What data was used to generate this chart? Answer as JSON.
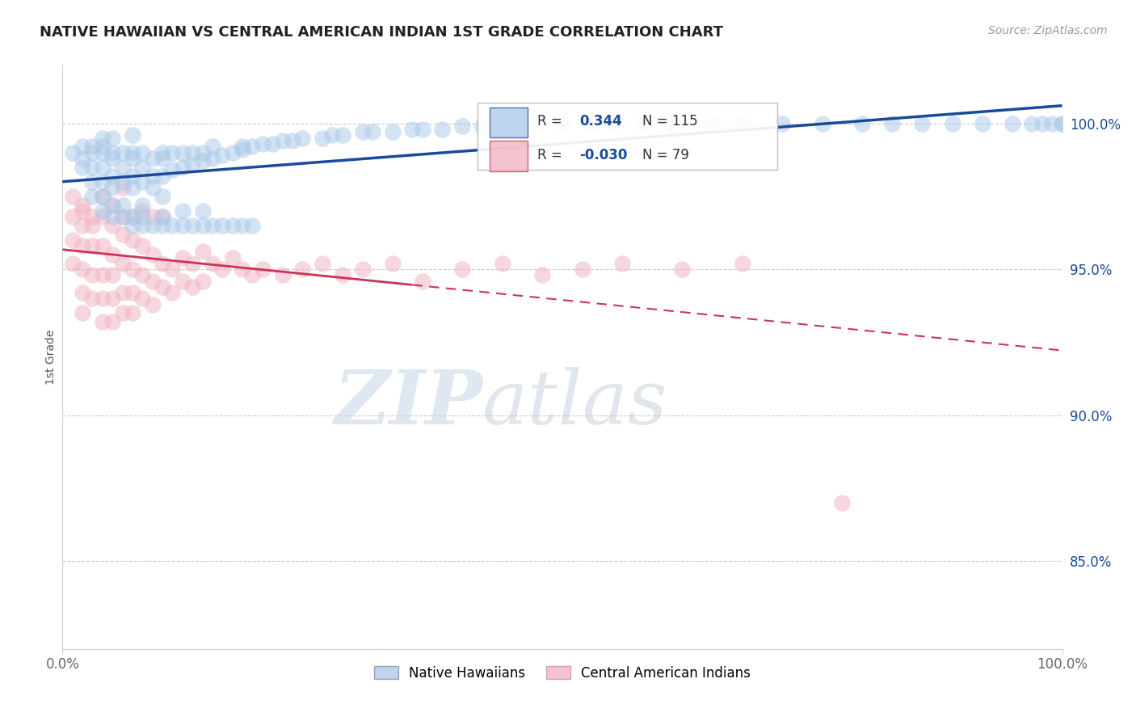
{
  "title": "NATIVE HAWAIIAN VS CENTRAL AMERICAN INDIAN 1ST GRADE CORRELATION CHART",
  "source_text": "Source: ZipAtlas.com",
  "ylabel": "1st Grade",
  "xlim": [
    0.0,
    1.0
  ],
  "ylim": [
    0.82,
    1.02
  ],
  "ytick_labels": [
    "85.0%",
    "90.0%",
    "95.0%",
    "100.0%"
  ],
  "ytick_values": [
    0.85,
    0.9,
    0.95,
    1.0
  ],
  "xtick_labels": [
    "0.0%",
    "100.0%"
  ],
  "xtick_values": [
    0.0,
    1.0
  ],
  "blue_R": 0.344,
  "blue_N": 115,
  "pink_R": -0.03,
  "pink_N": 79,
  "blue_color": "#a8c8e8",
  "pink_color": "#f0b0c0",
  "blue_line_color": "#1a4a9a",
  "pink_line_color": "#cc3355",
  "legend_label_blue": "Native Hawaiians",
  "legend_label_pink": "Central American Indians",
  "watermark_zip": "ZIP",
  "watermark_atlas": "atlas",
  "background_color": "#ffffff",
  "grid_color": "#cccccc",
  "title_color": "#222222",
  "blue_scatter_x": [
    0.01,
    0.02,
    0.02,
    0.02,
    0.03,
    0.03,
    0.03,
    0.03,
    0.03,
    0.04,
    0.04,
    0.04,
    0.04,
    0.04,
    0.04,
    0.04,
    0.05,
    0.05,
    0.05,
    0.05,
    0.05,
    0.05,
    0.05,
    0.06,
    0.06,
    0.06,
    0.06,
    0.06,
    0.07,
    0.07,
    0.07,
    0.07,
    0.07,
    0.07,
    0.07,
    0.08,
    0.08,
    0.08,
    0.08,
    0.08,
    0.08,
    0.09,
    0.09,
    0.09,
    0.09,
    0.1,
    0.1,
    0.1,
    0.1,
    0.1,
    0.1,
    0.11,
    0.11,
    0.11,
    0.12,
    0.12,
    0.12,
    0.12,
    0.13,
    0.13,
    0.13,
    0.14,
    0.14,
    0.14,
    0.14,
    0.15,
    0.15,
    0.15,
    0.16,
    0.16,
    0.17,
    0.17,
    0.18,
    0.18,
    0.18,
    0.19,
    0.19,
    0.2,
    0.21,
    0.22,
    0.23,
    0.24,
    0.26,
    0.27,
    0.28,
    0.3,
    0.31,
    0.33,
    0.35,
    0.36,
    0.38,
    0.4,
    0.42,
    0.44,
    0.46,
    0.5,
    0.53,
    0.55,
    0.58,
    0.61,
    0.65,
    0.68,
    0.72,
    0.76,
    0.8,
    0.83,
    0.86,
    0.89,
    0.92,
    0.95,
    0.97,
    0.98,
    0.99,
    1.0,
    1.0
  ],
  "blue_scatter_y": [
    0.99,
    0.988,
    0.985,
    0.992,
    0.98,
    0.985,
    0.99,
    0.992,
    0.975,
    0.98,
    0.985,
    0.99,
    0.992,
    0.975,
    0.97,
    0.995,
    0.978,
    0.982,
    0.988,
    0.99,
    0.972,
    0.968,
    0.995,
    0.98,
    0.985,
    0.99,
    0.972,
    0.968,
    0.978,
    0.982,
    0.988,
    0.99,
    0.968,
    0.965,
    0.996,
    0.98,
    0.985,
    0.99,
    0.968,
    0.965,
    0.972,
    0.982,
    0.988,
    0.965,
    0.978,
    0.982,
    0.988,
    0.99,
    0.965,
    0.968,
    0.975,
    0.984,
    0.99,
    0.965,
    0.985,
    0.99,
    0.965,
    0.97,
    0.986,
    0.99,
    0.965,
    0.987,
    0.99,
    0.965,
    0.97,
    0.988,
    0.992,
    0.965,
    0.989,
    0.965,
    0.99,
    0.965,
    0.991,
    0.992,
    0.965,
    0.992,
    0.965,
    0.993,
    0.993,
    0.994,
    0.994,
    0.995,
    0.995,
    0.996,
    0.996,
    0.997,
    0.997,
    0.997,
    0.998,
    0.998,
    0.998,
    0.999,
    0.999,
    0.999,
    0.999,
    1.0,
    1.0,
    1.0,
    1.0,
    1.0,
    1.0,
    1.0,
    1.0,
    1.0,
    1.0,
    1.0,
    1.0,
    1.0,
    1.0,
    1.0,
    1.0,
    1.0,
    1.0,
    1.0,
    1.0
  ],
  "pink_scatter_x": [
    0.01,
    0.01,
    0.01,
    0.01,
    0.02,
    0.02,
    0.02,
    0.02,
    0.02,
    0.02,
    0.02,
    0.03,
    0.03,
    0.03,
    0.03,
    0.03,
    0.04,
    0.04,
    0.04,
    0.04,
    0.04,
    0.04,
    0.05,
    0.05,
    0.05,
    0.05,
    0.05,
    0.05,
    0.06,
    0.06,
    0.06,
    0.06,
    0.06,
    0.06,
    0.07,
    0.07,
    0.07,
    0.07,
    0.07,
    0.08,
    0.08,
    0.08,
    0.08,
    0.09,
    0.09,
    0.09,
    0.09,
    0.1,
    0.1,
    0.1,
    0.11,
    0.11,
    0.12,
    0.12,
    0.13,
    0.13,
    0.14,
    0.14,
    0.15,
    0.16,
    0.17,
    0.18,
    0.19,
    0.2,
    0.22,
    0.24,
    0.26,
    0.28,
    0.3,
    0.33,
    0.36,
    0.4,
    0.44,
    0.48,
    0.52,
    0.56,
    0.62,
    0.68,
    0.78
  ],
  "pink_scatter_y": [
    0.975,
    0.968,
    0.96,
    0.952,
    0.972,
    0.965,
    0.958,
    0.95,
    0.942,
    0.935,
    0.97,
    0.968,
    0.958,
    0.948,
    0.94,
    0.965,
    0.968,
    0.958,
    0.948,
    0.94,
    0.932,
    0.975,
    0.965,
    0.955,
    0.948,
    0.94,
    0.932,
    0.972,
    0.962,
    0.952,
    0.942,
    0.935,
    0.968,
    0.978,
    0.96,
    0.95,
    0.942,
    0.935,
    0.968,
    0.958,
    0.948,
    0.94,
    0.97,
    0.955,
    0.946,
    0.938,
    0.968,
    0.952,
    0.944,
    0.968,
    0.95,
    0.942,
    0.954,
    0.946,
    0.952,
    0.944,
    0.956,
    0.946,
    0.952,
    0.95,
    0.954,
    0.95,
    0.948,
    0.95,
    0.948,
    0.95,
    0.952,
    0.948,
    0.95,
    0.952,
    0.946,
    0.95,
    0.952,
    0.948,
    0.95,
    0.952,
    0.95,
    0.952,
    0.87
  ]
}
